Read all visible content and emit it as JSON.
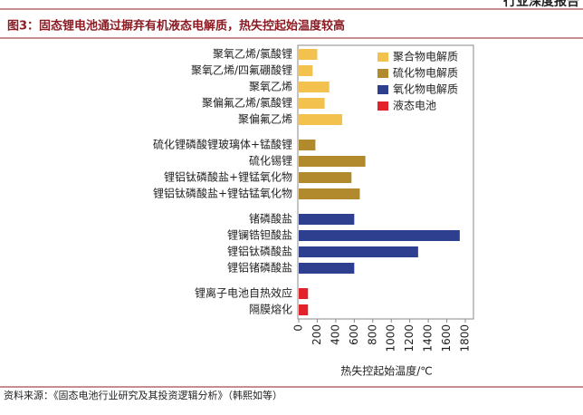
{
  "header": "行业深度报告",
  "source": "资料来源：《固态电池行业研究及其投资逻辑分析》（韩熙如等）",
  "chart_data": {
    "type": "bar",
    "orientation": "horizontal",
    "title": "图3：固态锂电池通过摒弃有机液态电解质，热失控起始温度较高",
    "xlabel": "热失控起始温度/℃",
    "categories": [
      "聚氧乙烯/氯酸锂",
      "聚氧乙烯/四氟硼酸锂",
      "聚氧乙烯",
      "聚偏氟乙烯/氯酸锂",
      "聚偏氟乙烯",
      null,
      "硫化锂磷酸锂玻璃体+锰酸锂",
      "硫化锡锂",
      "锂铝钛磷酸盐+锂锰氧化物",
      "锂铝钛磷酸盐+锂钴锰氧化物",
      null,
      "锗磷酸盐",
      "锂镧锆钽酸盐",
      "锂铝钛磷酸盐",
      "锂铝锗磷酸盐",
      null,
      "锂离子电池自热效应",
      "隔膜熔化"
    ],
    "series": [
      {
        "name": "聚合物电解质",
        "color": "#f2c14e",
        "values": [
          200,
          150,
          330,
          280,
          470,
          null,
          null,
          null,
          null,
          null,
          null,
          null,
          null,
          null,
          null,
          null,
          null,
          null
        ]
      },
      {
        "name": "硫化物电解质",
        "color": "#b08a2c",
        "values": [
          null,
          null,
          null,
          null,
          null,
          null,
          180,
          720,
          570,
          660,
          null,
          null,
          null,
          null,
          null,
          null,
          null,
          null
        ]
      },
      {
        "name": "氧化物电解质",
        "color": "#2f3f8f",
        "values": [
          null,
          null,
          null,
          null,
          null,
          null,
          null,
          null,
          null,
          null,
          null,
          600,
          1740,
          1290,
          600,
          null,
          null,
          null
        ]
      },
      {
        "name": "液态电池",
        "color": "#e2212b",
        "values": [
          null,
          null,
          null,
          null,
          null,
          null,
          null,
          null,
          null,
          null,
          null,
          null,
          null,
          null,
          null,
          null,
          100,
          100
        ]
      }
    ],
    "xlim": [
      0,
      1800
    ],
    "xticks": [
      0,
      200,
      400,
      600,
      800,
      1000,
      1200,
      1400,
      1600,
      1800
    ],
    "grid": false,
    "legend": "upper right"
  }
}
